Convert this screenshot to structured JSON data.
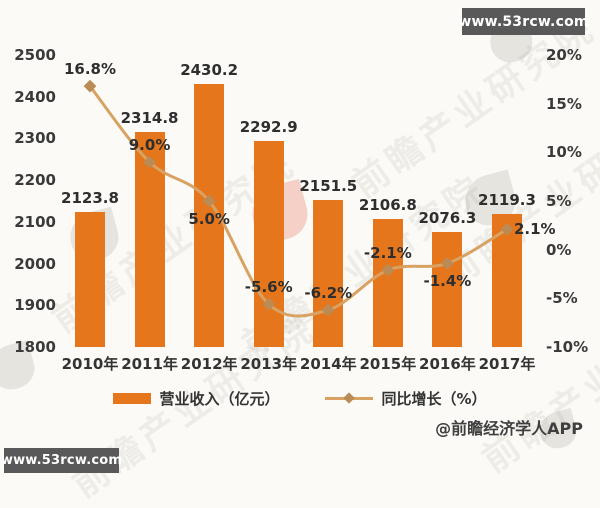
{
  "branding": {
    "site_badge_top": "www.53rcw.com",
    "site_badge_bottom": "www.53rcw.com",
    "credit": "@前瞻经济学人APP",
    "watermark_text": "前瞻产业研究院"
  },
  "colors": {
    "bar": "#e6761c",
    "line": "#d8a263",
    "marker": "#ba8b54",
    "badge_bg": "#595959",
    "label_text": "#2e2e2e",
    "background": "#fbfaf7"
  },
  "chart_data": {
    "type": "combo_bar_line",
    "title": "",
    "categories": [
      "2010年",
      "2011年",
      "2012年",
      "2013年",
      "2014年",
      "2015年",
      "2016年",
      "2017年"
    ],
    "series": [
      {
        "name": "营业收入（亿元）",
        "type": "bar",
        "axis": "left",
        "color": "#e6761c",
        "values": [
          2123.8,
          2314.8,
          2430.2,
          2292.9,
          2151.5,
          2106.8,
          2076.3,
          2119.3
        ],
        "labels": [
          "2123.8",
          "2314.8",
          "2430.2",
          "2292.9",
          "2151.5",
          "2106.8",
          "2076.3",
          "2119.3"
        ]
      },
      {
        "name": "同比增长（%）",
        "type": "line",
        "axis": "right",
        "color": "#d8a263",
        "marker": "diamond",
        "marker_color": "#ba8b54",
        "values": [
          16.8,
          9.0,
          5.0,
          -5.6,
          -6.2,
          -2.1,
          -1.4,
          2.1
        ],
        "labels": [
          "16.8%",
          "9.0%",
          "5.0%",
          "-5.6%",
          "-6.2%",
          "-2.1%",
          "-1.4%",
          "2.1%"
        ],
        "label_positions": [
          "above",
          "above",
          "below",
          "above",
          "above",
          "above",
          "below",
          "right"
        ]
      }
    ],
    "left_axis": {
      "min": 1800,
      "max": 2500,
      "step": 100,
      "ticks": [
        "2500",
        "2400",
        "2300",
        "2200",
        "2100",
        "2000",
        "1900",
        "1800"
      ]
    },
    "right_axis": {
      "min": -10,
      "max": 20,
      "step": 5,
      "ticks": [
        "20%",
        "15%",
        "10%",
        "5%",
        "0%",
        "-5%",
        "-10%"
      ]
    },
    "legend": [
      {
        "label": "营业收入（亿元）",
        "swatch": "bar"
      },
      {
        "label": "同比增长（%）",
        "swatch": "line"
      }
    ],
    "grid": false,
    "legend_position": "bottom"
  }
}
